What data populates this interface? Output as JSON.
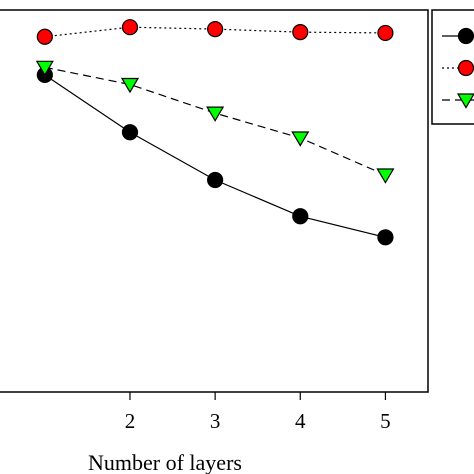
{
  "chart_data": {
    "type": "line",
    "title": "",
    "xlabel": "Number of layers",
    "ylabel": "",
    "x": [
      1,
      2,
      3,
      4,
      5
    ],
    "xticks": [
      "2",
      "3",
      "4",
      "5"
    ],
    "xlim": [
      0.45,
      5.5
    ],
    "ylim": [
      0,
      100
    ],
    "grid": false,
    "legend_position": "top-right",
    "series": [
      {
        "values": [
          83,
          68,
          55.5,
          46,
          40.5
        ],
        "color": "#000000",
        "line_style": "solid",
        "marker": "circle",
        "marker_fill": "#000000"
      },
      {
        "values": [
          93,
          95.5,
          95,
          94.2,
          94
        ],
        "color": "#000000",
        "line_style": "dotted",
        "marker": "circle",
        "marker_fill": "#ff0000"
      },
      {
        "values": [
          85,
          80.5,
          73,
          66.5,
          56.8
        ],
        "color": "#000000",
        "line_style": "dashed",
        "marker": "triangle-down",
        "marker_fill": "#00ff00"
      }
    ]
  }
}
